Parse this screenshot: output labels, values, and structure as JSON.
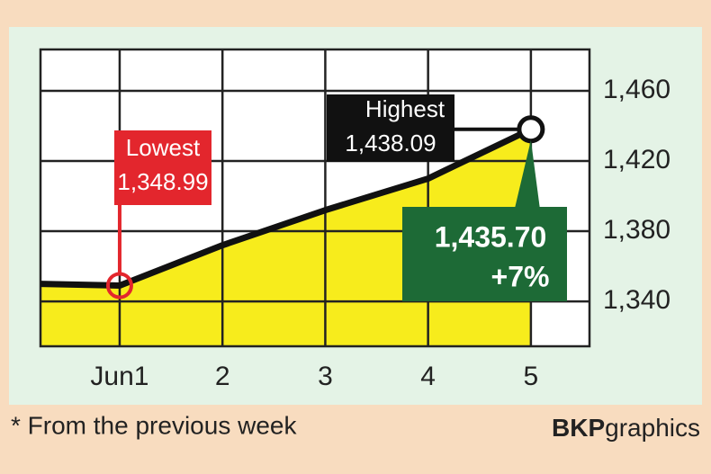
{
  "chart_data": {
    "type": "line",
    "x": [
      0.23,
      1,
      2,
      3,
      4,
      5
    ],
    "values": [
      1350,
      1348.99,
      1372,
      1392,
      1410,
      1438.09
    ],
    "color": "#111111",
    "fill": "#f7ec1c",
    "xlim": [
      0.23,
      5.57
    ],
    "xticks": [
      {
        "value": 1,
        "label": "Jun1"
      },
      2,
      3,
      4,
      5
    ],
    "ylim": [
      1314.4,
      1483.6
    ],
    "yticks": [
      {
        "value": 1340,
        "label": "1,340"
      },
      {
        "value": 1380,
        "label": "1,380"
      },
      {
        "value": 1420,
        "label": "1,420"
      },
      {
        "value": 1460,
        "label": "1,460"
      }
    ],
    "grid": true,
    "annotations": {
      "low": {
        "text": "Lowest",
        "value": 1348.99,
        "value_label": "1,348.99",
        "color": "#e3262d"
      },
      "high": {
        "text": "Highest",
        "value": 1438.09,
        "value_label": "1,438.09",
        "color": "#111111"
      },
      "close": {
        "value": 1435.7,
        "value_label": "1,435.70",
        "change": 7,
        "change_label": "+7%",
        "color": "#1d6a36"
      }
    },
    "footnote": "* From the previous week",
    "brand": {
      "bold": "BKP",
      "light": "graphics"
    }
  }
}
